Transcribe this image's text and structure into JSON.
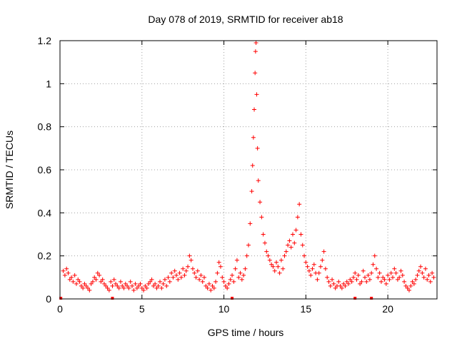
{
  "chart_data": {
    "type": "scatter",
    "title": "Day 078 of 2019, SRMTID for receiver ab18",
    "xlabel": "GPS time / hours",
    "ylabel": "SRMTID / TECUs",
    "xlim": [
      0,
      23
    ],
    "ylim": [
      0,
      1.2
    ],
    "grid": true,
    "marker": "+",
    "series_color": "#ff0000",
    "x_ticks": [
      0,
      5,
      10,
      15,
      20
    ],
    "x_tick_labels": [
      "0",
      "5",
      "10",
      "15",
      "20"
    ],
    "y_ticks": [
      0,
      0.2,
      0.4,
      0.6,
      0.8,
      1.0,
      1.2
    ],
    "y_tick_labels": [
      "0",
      "0.2",
      "0.4",
      "0.6",
      "0.8",
      "1",
      "1.2"
    ],
    "series": [
      {
        "name": "SRMTID",
        "points": [
          [
            0.05,
            0.0
          ],
          [
            3.2,
            0.0
          ],
          [
            10.5,
            0.0
          ],
          [
            18.0,
            0.0
          ],
          [
            19.0,
            0.0
          ],
          [
            0.2,
            0.13
          ],
          [
            0.3,
            0.11
          ],
          [
            0.4,
            0.14
          ],
          [
            0.5,
            0.12
          ],
          [
            0.6,
            0.09
          ],
          [
            0.7,
            0.1
          ],
          [
            0.8,
            0.08
          ],
          [
            0.9,
            0.11
          ],
          [
            1.0,
            0.07
          ],
          [
            1.1,
            0.09
          ],
          [
            1.2,
            0.08
          ],
          [
            1.3,
            0.06
          ],
          [
            1.4,
            0.05
          ],
          [
            1.5,
            0.07
          ],
          [
            1.6,
            0.06
          ],
          [
            1.7,
            0.05
          ],
          [
            1.8,
            0.04
          ],
          [
            1.9,
            0.07
          ],
          [
            2.0,
            0.08
          ],
          [
            2.1,
            0.1
          ],
          [
            2.2,
            0.09
          ],
          [
            2.3,
            0.12
          ],
          [
            2.4,
            0.11
          ],
          [
            2.5,
            0.08
          ],
          [
            2.6,
            0.09
          ],
          [
            2.7,
            0.07
          ],
          [
            2.8,
            0.06
          ],
          [
            2.9,
            0.05
          ],
          [
            3.0,
            0.04
          ],
          [
            3.1,
            0.08
          ],
          [
            3.2,
            0.06
          ],
          [
            3.3,
            0.09
          ],
          [
            3.4,
            0.07
          ],
          [
            3.5,
            0.06
          ],
          [
            3.6,
            0.05
          ],
          [
            3.7,
            0.08
          ],
          [
            3.8,
            0.06
          ],
          [
            3.9,
            0.05
          ],
          [
            4.0,
            0.07
          ],
          [
            4.1,
            0.06
          ],
          [
            4.2,
            0.05
          ],
          [
            4.3,
            0.08
          ],
          [
            4.4,
            0.06
          ],
          [
            4.5,
            0.04
          ],
          [
            4.6,
            0.07
          ],
          [
            4.7,
            0.05
          ],
          [
            4.8,
            0.06
          ],
          [
            4.9,
            0.07
          ],
          [
            5.0,
            0.05
          ],
          [
            5.1,
            0.04
          ],
          [
            5.2,
            0.06
          ],
          [
            5.3,
            0.05
          ],
          [
            5.4,
            0.07
          ],
          [
            5.5,
            0.08
          ],
          [
            5.6,
            0.09
          ],
          [
            5.7,
            0.06
          ],
          [
            5.8,
            0.07
          ],
          [
            5.9,
            0.05
          ],
          [
            6.0,
            0.06
          ],
          [
            6.1,
            0.08
          ],
          [
            6.2,
            0.05
          ],
          [
            6.3,
            0.07
          ],
          [
            6.4,
            0.09
          ],
          [
            6.5,
            0.06
          ],
          [
            6.6,
            0.1
          ],
          [
            6.7,
            0.08
          ],
          [
            6.8,
            0.12
          ],
          [
            6.9,
            0.1
          ],
          [
            7.0,
            0.13
          ],
          [
            7.1,
            0.11
          ],
          [
            7.2,
            0.09
          ],
          [
            7.3,
            0.12
          ],
          [
            7.4,
            0.1
          ],
          [
            7.5,
            0.14
          ],
          [
            7.6,
            0.11
          ],
          [
            7.7,
            0.13
          ],
          [
            7.8,
            0.15
          ],
          [
            7.9,
            0.2
          ],
          [
            8.0,
            0.18
          ],
          [
            8.1,
            0.14
          ],
          [
            8.2,
            0.12
          ],
          [
            8.3,
            0.1
          ],
          [
            8.4,
            0.13
          ],
          [
            8.5,
            0.09
          ],
          [
            8.6,
            0.11
          ],
          [
            8.7,
            0.08
          ],
          [
            8.8,
            0.1
          ],
          [
            8.9,
            0.06
          ],
          [
            9.0,
            0.05
          ],
          [
            9.1,
            0.07
          ],
          [
            9.2,
            0.04
          ],
          [
            9.3,
            0.06
          ],
          [
            9.4,
            0.05
          ],
          [
            9.5,
            0.08
          ],
          [
            9.6,
            0.12
          ],
          [
            9.7,
            0.17
          ],
          [
            9.8,
            0.15
          ],
          [
            9.9,
            0.1
          ],
          [
            10.0,
            0.08
          ],
          [
            10.1,
            0.06
          ],
          [
            10.2,
            0.05
          ],
          [
            10.3,
            0.07
          ],
          [
            10.4,
            0.09
          ],
          [
            10.5,
            0.11
          ],
          [
            10.6,
            0.08
          ],
          [
            10.7,
            0.14
          ],
          [
            10.8,
            0.18
          ],
          [
            10.9,
            0.1
          ],
          [
            11.0,
            0.12
          ],
          [
            11.1,
            0.09
          ],
          [
            11.2,
            0.11
          ],
          [
            11.3,
            0.14
          ],
          [
            11.4,
            0.2
          ],
          [
            11.5,
            0.25
          ],
          [
            11.6,
            0.35
          ],
          [
            11.7,
            0.5
          ],
          [
            11.75,
            0.62
          ],
          [
            11.8,
            0.75
          ],
          [
            11.85,
            0.88
          ],
          [
            11.9,
            1.05
          ],
          [
            11.93,
            1.15
          ],
          [
            11.96,
            1.19
          ],
          [
            12.0,
            0.95
          ],
          [
            12.05,
            0.7
          ],
          [
            12.1,
            0.55
          ],
          [
            12.2,
            0.45
          ],
          [
            12.3,
            0.38
          ],
          [
            12.4,
            0.3
          ],
          [
            12.5,
            0.26
          ],
          [
            12.6,
            0.22
          ],
          [
            12.7,
            0.2
          ],
          [
            12.8,
            0.18
          ],
          [
            12.9,
            0.16
          ],
          [
            13.0,
            0.15
          ],
          [
            13.1,
            0.13
          ],
          [
            13.2,
            0.17
          ],
          [
            13.3,
            0.15
          ],
          [
            13.4,
            0.12
          ],
          [
            13.5,
            0.18
          ],
          [
            13.6,
            0.14
          ],
          [
            13.7,
            0.2
          ],
          [
            13.8,
            0.22
          ],
          [
            13.9,
            0.25
          ],
          [
            14.0,
            0.27
          ],
          [
            14.1,
            0.24
          ],
          [
            14.2,
            0.3
          ],
          [
            14.3,
            0.26
          ],
          [
            14.4,
            0.32
          ],
          [
            14.5,
            0.38
          ],
          [
            14.6,
            0.44
          ],
          [
            14.7,
            0.3
          ],
          [
            14.8,
            0.25
          ],
          [
            14.9,
            0.2
          ],
          [
            15.0,
            0.17
          ],
          [
            15.1,
            0.15
          ],
          [
            15.2,
            0.13
          ],
          [
            15.3,
            0.11
          ],
          [
            15.4,
            0.14
          ],
          [
            15.5,
            0.16
          ],
          [
            15.6,
            0.12
          ],
          [
            15.7,
            0.09
          ],
          [
            15.8,
            0.12
          ],
          [
            15.9,
            0.15
          ],
          [
            16.0,
            0.18
          ],
          [
            16.1,
            0.22
          ],
          [
            16.2,
            0.14
          ],
          [
            16.3,
            0.1
          ],
          [
            16.4,
            0.08
          ],
          [
            16.5,
            0.06
          ],
          [
            16.6,
            0.09
          ],
          [
            16.7,
            0.07
          ],
          [
            16.8,
            0.05
          ],
          [
            16.9,
            0.06
          ],
          [
            17.0,
            0.08
          ],
          [
            17.1,
            0.06
          ],
          [
            17.2,
            0.05
          ],
          [
            17.3,
            0.07
          ],
          [
            17.4,
            0.06
          ],
          [
            17.5,
            0.08
          ],
          [
            17.6,
            0.07
          ],
          [
            17.7,
            0.09
          ],
          [
            17.8,
            0.08
          ],
          [
            17.9,
            0.1
          ],
          [
            18.0,
            0.12
          ],
          [
            18.1,
            0.09
          ],
          [
            18.2,
            0.11
          ],
          [
            18.3,
            0.07
          ],
          [
            18.4,
            0.08
          ],
          [
            18.5,
            0.13
          ],
          [
            18.6,
            0.1
          ],
          [
            18.7,
            0.08
          ],
          [
            18.8,
            0.11
          ],
          [
            18.9,
            0.09
          ],
          [
            19.0,
            0.12
          ],
          [
            19.1,
            0.16
          ],
          [
            19.2,
            0.2
          ],
          [
            19.3,
            0.14
          ],
          [
            19.4,
            0.1
          ],
          [
            19.5,
            0.12
          ],
          [
            19.6,
            0.08
          ],
          [
            19.7,
            0.1
          ],
          [
            19.8,
            0.09
          ],
          [
            19.9,
            0.07
          ],
          [
            20.0,
            0.11
          ],
          [
            20.1,
            0.09
          ],
          [
            20.2,
            0.12
          ],
          [
            20.3,
            0.1
          ],
          [
            20.4,
            0.14
          ],
          [
            20.5,
            0.12
          ],
          [
            20.6,
            0.09
          ],
          [
            20.7,
            0.1
          ],
          [
            20.8,
            0.13
          ],
          [
            20.9,
            0.11
          ],
          [
            21.0,
            0.08
          ],
          [
            21.1,
            0.06
          ],
          [
            21.2,
            0.05
          ],
          [
            21.3,
            0.04
          ],
          [
            21.4,
            0.06
          ],
          [
            21.5,
            0.08
          ],
          [
            21.6,
            0.07
          ],
          [
            21.7,
            0.09
          ],
          [
            21.8,
            0.11
          ],
          [
            21.9,
            0.13
          ],
          [
            22.0,
            0.15
          ],
          [
            22.1,
            0.12
          ],
          [
            22.2,
            0.1
          ],
          [
            22.3,
            0.14
          ],
          [
            22.4,
            0.09
          ],
          [
            22.5,
            0.11
          ],
          [
            22.6,
            0.08
          ],
          [
            22.7,
            0.12
          ],
          [
            22.8,
            0.1
          ]
        ]
      }
    ]
  }
}
